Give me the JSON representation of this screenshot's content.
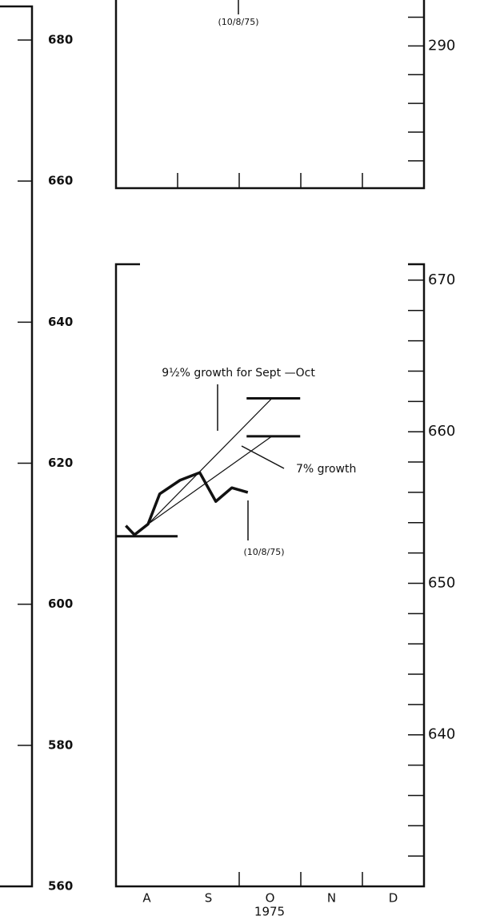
{
  "chart_data": [
    {
      "type": "line",
      "y2lim": [
        280.1,
        293.2
      ],
      "y2ticks": [
        290
      ],
      "y2minorticks": [
        282,
        284,
        286,
        288,
        292
      ],
      "xlim": [
        0,
        5
      ],
      "xticks": [
        1,
        2,
        3,
        4
      ],
      "annotations": [
        "(10/8/75)"
      ]
    },
    {
      "type": "line",
      "categories": [
        "A",
        "S",
        "O",
        "N",
        "D"
      ],
      "xlabel": "1975",
      "xlim": [
        0,
        5
      ],
      "xticks": [
        1,
        2,
        3,
        4
      ],
      "ylim": [
        560,
        680
      ],
      "yticks": [
        560,
        580,
        600,
        620,
        640,
        660,
        680
      ],
      "y2lim": [
        630,
        671
      ],
      "y2ticks": [
        640,
        650,
        660,
        670
      ],
      "y2minorticks": [
        632,
        634,
        636,
        638,
        642,
        644,
        646,
        648,
        652,
        654,
        656,
        658,
        662,
        664,
        666,
        668
      ],
      "series": [
        {
          "color": "#111",
          "axis": "y2",
          "x": [
            0.16,
            0.3,
            0.52,
            0.71,
            1.04,
            1.36,
            1.62,
            1.88,
            2.14
          ],
          "values": [
            653.8,
            653.2,
            653.9,
            655.9,
            656.8,
            657.3,
            655.4,
            656.3,
            656.0
          ]
        }
      ],
      "reference_lines": [
        {
          "value": 653.1,
          "x": [
            0,
            1
          ]
        },
        {
          "value": 662.2,
          "x": [
            2.12,
            2.99
          ]
        },
        {
          "value": 659.7,
          "x": [
            2.12,
            2.99
          ]
        }
      ],
      "trend_lines": [
        {
          "x": [
            0.52,
            2.53
          ],
          "values": [
            653.9,
            662.2
          ]
        },
        {
          "x": [
            0.52,
            2.53
          ],
          "values": [
            653.9,
            659.7
          ]
        }
      ],
      "annotations": [
        "9½% growth for Sept —Oct",
        "7% growth",
        "(10/8/75)"
      ]
    }
  ]
}
